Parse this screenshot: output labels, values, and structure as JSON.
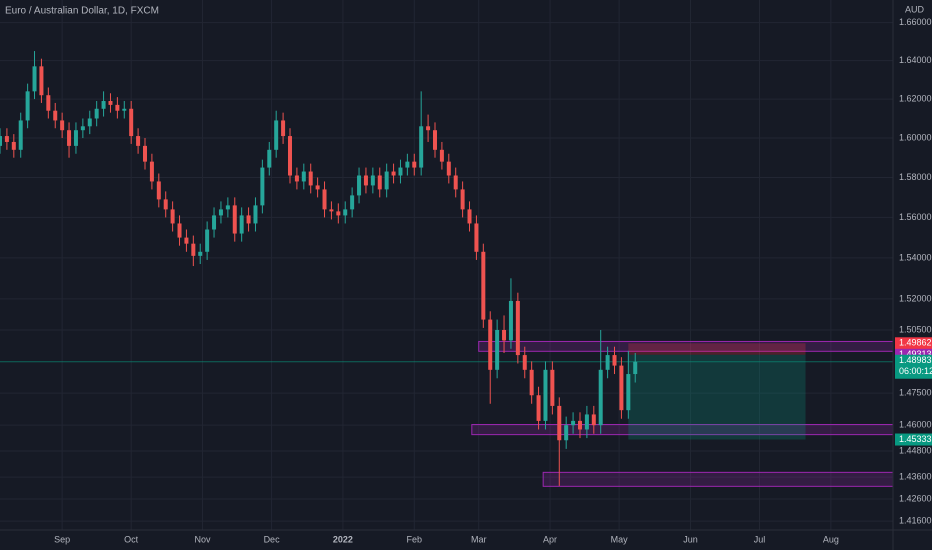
{
  "chart_data": {
    "type": "candlestick",
    "title": "Euro / Australian Dollar, 1D, FXCM",
    "currency": "AUD",
    "log_scale": true,
    "grid": true,
    "up_color": "#26a69a",
    "down_color": "#ef5350",
    "xlim": [
      -27,
      361
    ],
    "ylim": [
      1.412,
      1.672
    ],
    "xticks": [
      {
        "value": 0,
        "label": "Sep"
      },
      {
        "value": 30,
        "label": "Oct"
      },
      {
        "value": 61,
        "label": "Nov"
      },
      {
        "value": 91,
        "label": "Dec"
      },
      {
        "value": 122,
        "label": "2022"
      },
      {
        "value": 153,
        "label": "Feb"
      },
      {
        "value": 181,
        "label": "Mar"
      },
      {
        "value": 212,
        "label": "Apr"
      },
      {
        "value": 242,
        "label": "May"
      },
      {
        "value": 273,
        "label": "Jun"
      },
      {
        "value": 303,
        "label": "Jul"
      },
      {
        "value": 334,
        "label": "Aug"
      }
    ],
    "yticks": [
      {
        "value": 1.66,
        "label": "1.66000"
      },
      {
        "value": 1.64,
        "label": "1.64000"
      },
      {
        "value": 1.62,
        "label": "1.62000"
      },
      {
        "value": 1.6,
        "label": "1.60000"
      },
      {
        "value": 1.58,
        "label": "1.58000"
      },
      {
        "value": 1.56,
        "label": "1.56000"
      },
      {
        "value": 1.54,
        "label": "1.54000"
      },
      {
        "value": 1.52,
        "label": "1.52000"
      },
      {
        "value": 1.505,
        "label": "1.50500"
      },
      {
        "value": 1.475,
        "label": "1.47500"
      },
      {
        "value": 1.46,
        "label": "1.46000"
      },
      {
        "value": 1.448,
        "label": "1.44800"
      },
      {
        "value": 1.436,
        "label": "1.43600"
      },
      {
        "value": 1.426,
        "label": "1.42600"
      },
      {
        "value": 1.416,
        "label": "1.41600"
      }
    ],
    "x": [
      -27,
      -24,
      -21,
      -18,
      -15,
      -12,
      -9,
      -6,
      -3,
      0,
      3,
      6,
      9,
      12,
      15,
      18,
      21,
      24,
      27,
      30,
      33,
      36,
      39,
      42,
      45,
      48,
      51,
      54,
      57,
      60,
      63,
      66,
      69,
      72,
      75,
      78,
      81,
      84,
      87,
      90,
      93,
      96,
      99,
      102,
      105,
      108,
      111,
      114,
      117,
      120,
      123,
      126,
      129,
      132,
      135,
      138,
      141,
      144,
      147,
      150,
      153,
      156,
      159,
      162,
      165,
      168,
      171,
      174,
      177,
      180,
      183,
      186,
      189,
      192,
      195,
      198,
      201,
      204,
      207,
      210,
      213,
      216,
      219,
      222,
      225,
      228,
      231,
      234,
      237,
      240,
      243,
      246,
      249
    ],
    "open": [
      1.596,
      1.601,
      1.598,
      1.594,
      1.609,
      1.624,
      1.637,
      1.622,
      1.614,
      1.609,
      1.604,
      1.596,
      1.604,
      1.606,
      1.61,
      1.615,
      1.619,
      1.617,
      1.614,
      1.615,
      1.601,
      1.596,
      1.588,
      1.578,
      1.569,
      1.564,
      1.557,
      1.55,
      1.547,
      1.541,
      1.543,
      1.554,
      1.561,
      1.564,
      1.566,
      1.552,
      1.561,
      1.557,
      1.566,
      1.585,
      1.594,
      1.609,
      1.601,
      1.581,
      1.578,
      1.583,
      1.576,
      1.574,
      1.564,
      1.563,
      1.561,
      1.564,
      1.571,
      1.581,
      1.576,
      1.581,
      1.574,
      1.583,
      1.581,
      1.585,
      1.588,
      1.585,
      1.606,
      1.604,
      1.594,
      1.588,
      1.581,
      1.574,
      1.564,
      1.557,
      1.543,
      1.51,
      1.486,
      1.505,
      1.5,
      1.519,
      1.493,
      1.486,
      1.474,
      1.462,
      1.486,
      1.469,
      1.453,
      1.46,
      1.462,
      1.458,
      1.465,
      1.46,
      1.486,
      1.493,
      1.488,
      1.467,
      1.484
    ],
    "high": [
      1.605,
      1.605,
      1.602,
      1.613,
      1.628,
      1.645,
      1.641,
      1.626,
      1.618,
      1.613,
      1.608,
      1.608,
      1.61,
      1.614,
      1.619,
      1.624,
      1.623,
      1.621,
      1.619,
      1.619,
      1.605,
      1.6,
      1.592,
      1.582,
      1.573,
      1.568,
      1.561,
      1.554,
      1.551,
      1.547,
      1.558,
      1.565,
      1.568,
      1.57,
      1.57,
      1.565,
      1.565,
      1.57,
      1.589,
      1.598,
      1.614,
      1.613,
      1.605,
      1.585,
      1.587,
      1.587,
      1.58,
      1.578,
      1.568,
      1.567,
      1.568,
      1.575,
      1.585,
      1.585,
      1.585,
      1.585,
      1.587,
      1.587,
      1.589,
      1.592,
      1.592,
      1.624,
      1.612,
      1.608,
      1.598,
      1.592,
      1.585,
      1.578,
      1.568,
      1.561,
      1.547,
      1.514,
      1.51,
      1.512,
      1.53,
      1.523,
      1.497,
      1.49,
      1.478,
      1.49,
      1.49,
      1.473,
      1.464,
      1.466,
      1.466,
      1.469,
      1.469,
      1.505,
      1.497,
      1.497,
      1.492,
      1.495,
      1.494
    ],
    "low": [
      1.592,
      1.594,
      1.59,
      1.59,
      1.605,
      1.62,
      1.618,
      1.61,
      1.605,
      1.6,
      1.59,
      1.592,
      1.6,
      1.602,
      1.606,
      1.611,
      1.613,
      1.61,
      1.61,
      1.597,
      1.592,
      1.584,
      1.574,
      1.565,
      1.56,
      1.553,
      1.546,
      1.543,
      1.536,
      1.537,
      1.539,
      1.55,
      1.557,
      1.56,
      1.548,
      1.548,
      1.553,
      1.553,
      1.562,
      1.581,
      1.59,
      1.597,
      1.577,
      1.574,
      1.574,
      1.572,
      1.57,
      1.56,
      1.559,
      1.557,
      1.557,
      1.56,
      1.567,
      1.572,
      1.572,
      1.57,
      1.57,
      1.577,
      1.577,
      1.581,
      1.581,
      1.581,
      1.598,
      1.59,
      1.584,
      1.577,
      1.57,
      1.56,
      1.553,
      1.539,
      1.506,
      1.47,
      1.482,
      1.494,
      1.496,
      1.489,
      1.482,
      1.47,
      1.458,
      1.458,
      1.465,
      1.432,
      1.449,
      1.456,
      1.454,
      1.454,
      1.456,
      1.456,
      1.482,
      1.484,
      1.463,
      1.463,
      1.48
    ],
    "close": [
      1.601,
      1.598,
      1.594,
      1.609,
      1.624,
      1.637,
      1.622,
      1.614,
      1.609,
      1.604,
      1.596,
      1.604,
      1.606,
      1.61,
      1.615,
      1.619,
      1.617,
      1.614,
      1.615,
      1.601,
      1.596,
      1.588,
      1.578,
      1.569,
      1.564,
      1.557,
      1.55,
      1.547,
      1.541,
      1.543,
      1.554,
      1.561,
      1.564,
      1.566,
      1.552,
      1.561,
      1.557,
      1.566,
      1.585,
      1.594,
      1.609,
      1.601,
      1.581,
      1.578,
      1.583,
      1.576,
      1.574,
      1.564,
      1.563,
      1.561,
      1.564,
      1.571,
      1.581,
      1.576,
      1.581,
      1.574,
      1.583,
      1.581,
      1.585,
      1.588,
      1.585,
      1.606,
      1.604,
      1.594,
      1.588,
      1.581,
      1.574,
      1.564,
      1.557,
      1.543,
      1.51,
      1.486,
      1.505,
      1.5,
      1.519,
      1.493,
      1.486,
      1.474,
      1.462,
      1.486,
      1.469,
      1.453,
      1.46,
      1.462,
      1.458,
      1.465,
      1.46,
      1.486,
      1.493,
      1.488,
      1.467,
      1.484,
      1.48983
    ],
    "zones": [
      {
        "low": 1.4948,
        "high": 1.4995,
        "start": 181,
        "color": "#9c27b0"
      },
      {
        "low": 1.4556,
        "high": 1.4603,
        "start": 178,
        "color": "#9c27b0"
      },
      {
        "low": 1.4318,
        "high": 1.4382,
        "start": 209,
        "color": "#9c27b0"
      }
    ],
    "position": {
      "stop": 1.49862,
      "entry": 1.49313,
      "target": 1.45333,
      "start": 246,
      "end": 323,
      "loss_color": "#f23645",
      "profit_color": "#089981"
    },
    "price_labels": [
      {
        "value": 1.49862,
        "color": "#f23645"
      },
      {
        "value": 1.49313,
        "color": "#9c27b0"
      },
      {
        "value": 1.45333,
        "color": "#089981"
      }
    ],
    "current_price": {
      "value": 1.48983,
      "color": "#089981",
      "countdown": "06:00:12"
    }
  }
}
